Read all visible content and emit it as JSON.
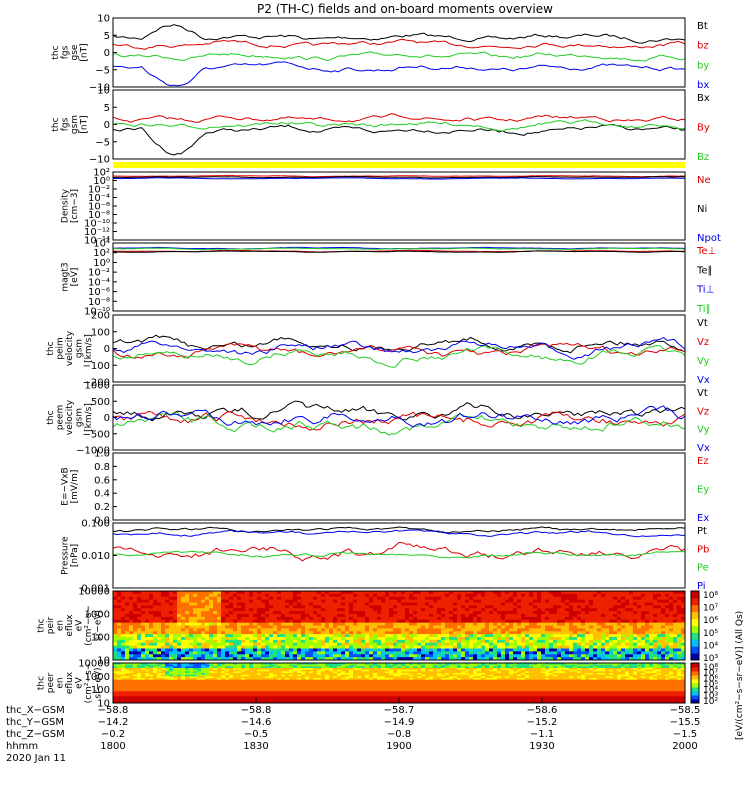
{
  "title": "P2 (TH-C) fields and on-board moments overview",
  "colors": {
    "black": "#000000",
    "red": "#dd0000",
    "green": "#22cc22",
    "blue": "#0000ee",
    "yellow": "#ffff00"
  },
  "chart_data": [
    {
      "type": "line",
      "panel": "fgs_gse",
      "ylabel": [
        "thc",
        "fgs",
        "gse",
        "[nT]"
      ],
      "ylim": [
        -10,
        10
      ],
      "yticks": [
        "10",
        "5",
        "0",
        "−5",
        "−10"
      ],
      "series": [
        {
          "name": "Bt",
          "color": "black"
        },
        {
          "name": "bz",
          "color": "red"
        },
        {
          "name": "by",
          "color": "green"
        },
        {
          "name": "bx",
          "color": "blue"
        }
      ]
    },
    {
      "type": "line",
      "panel": "fgs_gsm",
      "ylabel": [
        "thc",
        "fgs",
        "gsm",
        "[nT]"
      ],
      "ylim": [
        -10,
        10
      ],
      "yticks": [
        "10",
        "5",
        "0",
        "−5",
        "−10"
      ],
      "series": [
        {
          "name": "Bx",
          "color": "black"
        },
        {
          "name": "By",
          "color": "red"
        },
        {
          "name": "Bz",
          "color": "green"
        }
      ]
    },
    {
      "type": "line",
      "panel": "density",
      "ylabel": [
        "Density",
        "[cm−3]"
      ],
      "log": true,
      "yticks": [
        "10²",
        "10⁰",
        "10⁻²",
        "10⁻⁴",
        "10⁻⁶",
        "10⁻⁸",
        "10⁻¹⁰",
        "10⁻¹²",
        "10⁻¹⁴"
      ],
      "series": [
        {
          "name": "Ne",
          "color": "red"
        },
        {
          "name": "Ni",
          "color": "black"
        },
        {
          "name": "Npot",
          "color": "blue"
        }
      ]
    },
    {
      "type": "line",
      "panel": "temperature",
      "ylabel": [
        "magt3",
        "[eV]"
      ],
      "log": true,
      "yticks": [
        "10⁴",
        "10²",
        "10⁰",
        "10⁻²",
        "10⁻⁴",
        "10⁻⁶",
        "10⁻⁸",
        "10⁻¹⁰"
      ],
      "series": [
        {
          "name": "Te⊥",
          "color": "red"
        },
        {
          "name": "Te∥",
          "color": "black"
        },
        {
          "name": "Ti⊥",
          "color": "blue"
        },
        {
          "name": "Ti∥",
          "color": "green"
        }
      ]
    },
    {
      "type": "line",
      "panel": "peim_velocity",
      "ylabel": [
        "thc",
        "peim",
        "velocity",
        "gsm",
        "[km/s]"
      ],
      "ylim": [
        -200,
        200
      ],
      "yticks": [
        "200",
        "100",
        "0",
        "−100",
        "−200"
      ],
      "series": [
        {
          "name": "Vt",
          "color": "black"
        },
        {
          "name": "Vz",
          "color": "red"
        },
        {
          "name": "Vy",
          "color": "green"
        },
        {
          "name": "Vx",
          "color": "blue"
        }
      ]
    },
    {
      "type": "line",
      "panel": "peem_velocity",
      "ylabel": [
        "thc",
        "peem",
        "velocity",
        "gsm",
        "[km/s]"
      ],
      "ylim": [
        -1000,
        1000
      ],
      "yticks": [
        "1000",
        "500",
        "0",
        "−500",
        "−1000"
      ],
      "series": [
        {
          "name": "Vt",
          "color": "black"
        },
        {
          "name": "Vz",
          "color": "red"
        },
        {
          "name": "Vy",
          "color": "green"
        },
        {
          "name": "Vx",
          "color": "blue"
        }
      ]
    },
    {
      "type": "line",
      "panel": "efield",
      "ylabel": [
        "E=−VxB",
        "[mV/m]"
      ],
      "ylim": [
        0,
        1
      ],
      "yticks": [
        "1.0",
        "0.8",
        "0.6",
        "0.4",
        "0.2",
        "0.0"
      ],
      "series": [
        {
          "name": "Ez",
          "color": "red"
        },
        {
          "name": "Ey",
          "color": "green"
        },
        {
          "name": "Ex",
          "color": "blue"
        }
      ]
    },
    {
      "type": "line",
      "panel": "pressure",
      "ylabel": [
        "Pressure",
        "[nPa]"
      ],
      "log": true,
      "yticks": [
        "0.100",
        "0.010",
        "0.001"
      ],
      "series": [
        {
          "name": "Pt",
          "color": "black"
        },
        {
          "name": "Pb",
          "color": "red"
        },
        {
          "name": "Pe",
          "color": "green"
        },
        {
          "name": "Pi",
          "color": "blue"
        }
      ]
    },
    {
      "type": "heatmap",
      "panel": "peir",
      "ylabel": [
        "thc",
        "peir",
        "en",
        "eflux",
        "eV",
        "(cm²−s−",
        "sr−eV)"
      ],
      "yticks": [
        "10000",
        "1000",
        "100",
        "10"
      ]
    },
    {
      "type": "heatmap",
      "panel": "peer",
      "ylabel": [
        "thc",
        "peer",
        "en",
        "eflux",
        "eV",
        "(cm²−s−",
        "sr−eV)"
      ],
      "yticks": [
        "10000",
        "1000",
        "100",
        "10"
      ]
    }
  ],
  "colorbars": [
    {
      "ticks": [
        "10⁸",
        "10⁷",
        "10⁶",
        "10⁵",
        "10⁴",
        "10³"
      ]
    },
    {
      "ticks": [
        "10⁸",
        "10⁷",
        "10⁶",
        "10⁵",
        "10⁴",
        "10³",
        "10²"
      ]
    }
  ],
  "colorbar_label": "[eV/(cm²−s−sr−eV)] (All Qs)",
  "xaxis": {
    "rows": [
      {
        "label": "thc_X−GSM",
        "values": [
          "−58.8",
          "−58.8",
          "−58.7",
          "−58.6",
          "−58.5"
        ]
      },
      {
        "label": "thc_Y−GSM",
        "values": [
          "−14.2",
          "−14.6",
          "−14.9",
          "−15.2",
          "−15.5"
        ]
      },
      {
        "label": "thc_Z−GSM",
        "values": [
          "−0.2",
          "−0.5",
          "−0.8",
          "−1.1",
          "−1.5"
        ]
      },
      {
        "label": "hhmm",
        "values": [
          "1800",
          "1830",
          "1900",
          "1930",
          "2000"
        ]
      }
    ],
    "date": "2020 Jan 11"
  }
}
